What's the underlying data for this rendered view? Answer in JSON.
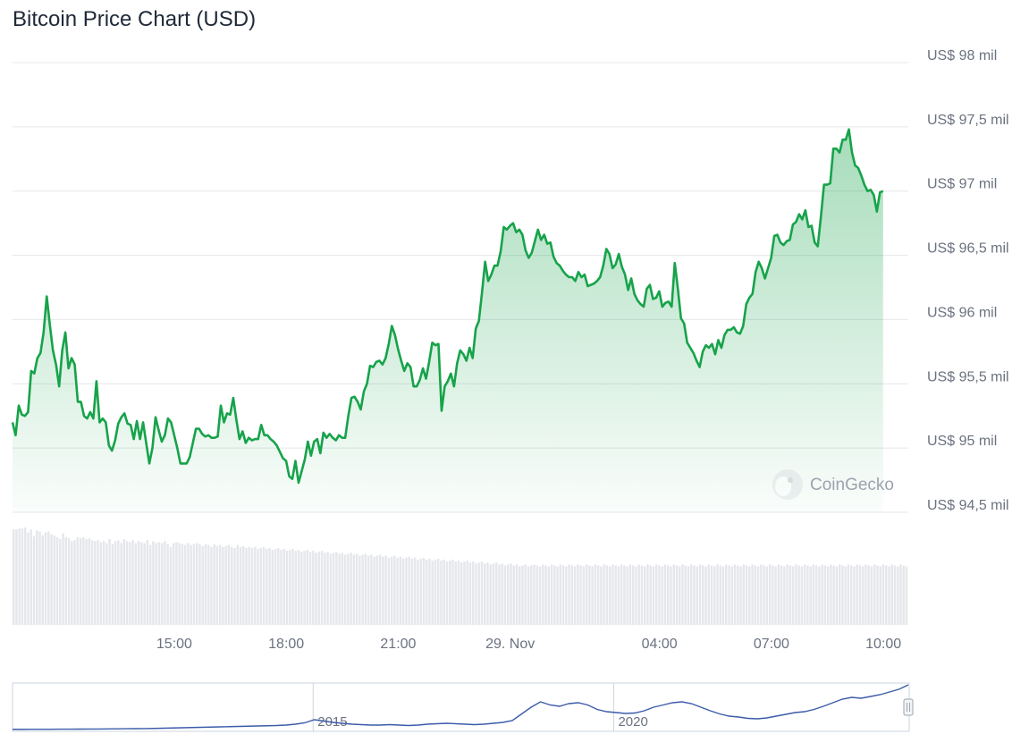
{
  "page": {
    "title": "Bitcoin Price Chart (USD)"
  },
  "watermark": {
    "text": "CoinGecko"
  },
  "colors": {
    "line": "#16a34a",
    "navigator_line": "#3b5ba9",
    "volume": "#e5e7eb",
    "grid": "#e5e7eb",
    "area": "#16a34a"
  },
  "chart_data": {
    "type": "line",
    "title": "Bitcoin Price Chart (USD)",
    "y_unit": "USD",
    "ylim": [
      94500,
      98000
    ],
    "y_ticks": [
      98000,
      97500,
      97000,
      96500,
      96000,
      95500,
      95000,
      94500
    ],
    "y_tick_labels": [
      "US$ 98 mil",
      "US$ 97,5 mil",
      "US$ 97 mil",
      "US$ 96,5 mil",
      "US$ 96 mil",
      "US$ 95,5 mil",
      "US$ 95 mil",
      "US$ 94,5 mil"
    ],
    "x_hours_range": [
      10.6667,
      34.6667
    ],
    "x_ticks": [
      {
        "label": "15:00",
        "hour": 15
      },
      {
        "label": "18:00",
        "hour": 18
      },
      {
        "label": "21:00",
        "hour": 21
      },
      {
        "label": "29. Nov",
        "hour": 24
      },
      {
        "label": "04:00",
        "hour": 28
      },
      {
        "label": "07:00",
        "hour": 31
      },
      {
        "label": "10:00",
        "hour": 34
      }
    ],
    "grid": true,
    "legend": "none",
    "series": [
      {
        "x_hours_step": 0.0833,
        "values": [
          95200,
          95100,
          95330,
          95260,
          95250,
          95280,
          95600,
          95580,
          95700,
          95740,
          95900,
          96180,
          95960,
          95760,
          95650,
          95480,
          95760,
          95900,
          95620,
          95700,
          95650,
          95360,
          95360,
          95250,
          95230,
          95280,
          95230,
          95520,
          95200,
          95230,
          95200,
          95020,
          94980,
          95060,
          95190,
          95240,
          95270,
          95190,
          95180,
          95070,
          95210,
          95070,
          95200,
          95040,
          94880,
          95000,
          95240,
          95140,
          95050,
          95100,
          95230,
          95200,
          95100,
          95000,
          94880,
          94880,
          94880,
          94930,
          95040,
          95150,
          95150,
          95110,
          95090,
          95100,
          95080,
          95080,
          95090,
          95330,
          95200,
          95270,
          95260,
          95390,
          95220,
          95070,
          95130,
          95040,
          95080,
          95060,
          95070,
          95070,
          95180,
          95100,
          95100,
          95070,
          95050,
          95020,
          94970,
          94920,
          94900,
          94780,
          94760,
          94900,
          94730,
          94820,
          94910,
          95050,
          94940,
          95050,
          95070,
          94960,
          95120,
          95080,
          95110,
          95080,
          95060,
          95100,
          95080,
          95080,
          95250,
          95390,
          95400,
          95360,
          95300,
          95440,
          95500,
          95640,
          95630,
          95670,
          95680,
          95650,
          95700,
          95810,
          95950,
          95880,
          95770,
          95680,
          95600,
          95660,
          95630,
          95480,
          95480,
          95530,
          95620,
          95540,
          95670,
          95820,
          95800,
          95810,
          95290,
          95480,
          95520,
          95580,
          95480,
          95660,
          95760,
          95730,
          95680,
          95780,
          95700,
          95930,
          95990,
          96210,
          96450,
          96300,
          96350,
          96420,
          96420,
          96530,
          96720,
          96700,
          96730,
          96750,
          96680,
          96700,
          96660,
          96540,
          96480,
          96520,
          96610,
          96700,
          96620,
          96660,
          96590,
          96600,
          96490,
          96440,
          96420,
          96380,
          96350,
          96330,
          96330,
          96300,
          96370,
          96330,
          96350,
          96260,
          96270,
          96280,
          96300,
          96330,
          96420,
          96550,
          96510,
          96400,
          96430,
          96510,
          96410,
          96350,
          96230,
          96320,
          96200,
          96150,
          96120,
          96100,
          96240,
          96270,
          96160,
          96170,
          96220,
          96100,
          96130,
          96140,
          96100,
          96440,
          96240,
          96010,
          95970,
          95820,
          95780,
          95740,
          95680,
          95630,
          95750,
          95800,
          95780,
          95810,
          95730,
          95840,
          95780,
          95880,
          95920,
          95920,
          95940,
          95900,
          95890,
          95950,
          96120,
          96170,
          96200,
          96370,
          96450,
          96400,
          96320,
          96400,
          96480,
          96650,
          96660,
          96600,
          96580,
          96610,
          96620,
          96740,
          96760,
          96820,
          96780,
          96850,
          96720,
          96730,
          96600,
          96570,
          96800,
          97050,
          97050,
          97060,
          97330,
          97330,
          97300,
          97400,
          97400,
          97480,
          97300,
          97200,
          97180,
          97120,
          97050,
          97000,
          97010,
          96970,
          96840,
          96990,
          97000
        ]
      }
    ],
    "volume": {
      "note": "relative bar heights, unlabeled",
      "values": [
        0.98,
        0.98,
        0.99,
        0.99,
        1.0,
        0.95,
        0.98,
        0.91,
        0.97,
        0.96,
        0.92,
        0.95,
        0.96,
        0.93,
        0.92,
        0.9,
        0.88,
        0.94,
        0.9,
        0.89,
        0.86,
        0.87,
        0.9,
        0.89,
        0.9,
        0.88,
        0.89,
        0.87,
        0.86,
        0.87,
        0.85,
        0.86,
        0.84,
        0.88,
        0.83,
        0.86,
        0.87,
        0.84,
        0.88,
        0.86,
        0.85,
        0.87,
        0.84,
        0.86,
        0.85,
        0.84,
        0.87,
        0.82,
        0.86,
        0.84,
        0.85,
        0.84,
        0.86,
        0.83,
        0.8,
        0.84,
        0.85,
        0.84,
        0.83,
        0.82,
        0.84,
        0.82,
        0.83,
        0.84,
        0.83,
        0.81,
        0.83,
        0.82,
        0.8,
        0.83,
        0.81,
        0.82,
        0.8,
        0.81,
        0.82,
        0.8,
        0.79,
        0.82,
        0.8,
        0.81,
        0.79,
        0.8,
        0.79,
        0.8,
        0.78,
        0.79,
        0.8,
        0.78,
        0.79,
        0.77,
        0.78,
        0.79,
        0.77,
        0.78,
        0.76,
        0.77,
        0.78,
        0.76,
        0.77,
        0.75,
        0.76,
        0.77,
        0.75,
        0.76,
        0.74,
        0.75,
        0.76,
        0.74,
        0.75,
        0.73,
        0.74,
        0.75,
        0.73,
        0.74,
        0.72,
        0.73,
        0.74,
        0.72,
        0.73,
        0.71,
        0.72,
        0.73,
        0.71,
        0.72,
        0.7,
        0.71,
        0.72,
        0.7,
        0.71,
        0.69,
        0.7,
        0.71,
        0.69,
        0.7,
        0.68,
        0.69,
        0.7,
        0.68,
        0.69,
        0.67,
        0.68,
        0.69,
        0.67,
        0.68,
        0.66,
        0.67,
        0.68,
        0.66,
        0.67,
        0.65,
        0.66,
        0.67,
        0.65,
        0.66,
        0.64,
        0.65,
        0.66,
        0.64,
        0.65,
        0.63,
        0.64,
        0.65,
        0.63,
        0.64,
        0.62,
        0.63,
        0.64,
        0.62,
        0.63,
        0.61,
        0.62,
        0.63,
        0.61,
        0.62,
        0.6,
        0.61,
        0.62,
        0.6,
        0.61,
        0.62,
        0.61,
        0.6,
        0.62,
        0.61,
        0.6,
        0.62,
        0.61,
        0.6,
        0.62,
        0.61,
        0.6,
        0.62,
        0.61,
        0.6,
        0.62,
        0.61,
        0.6,
        0.62,
        0.61,
        0.6,
        0.62,
        0.61,
        0.6,
        0.62,
        0.61,
        0.6,
        0.62,
        0.61,
        0.6,
        0.62,
        0.61,
        0.6,
        0.62,
        0.61,
        0.6,
        0.62,
        0.61,
        0.6,
        0.62,
        0.61,
        0.6,
        0.62,
        0.61,
        0.6,
        0.62,
        0.61,
        0.6,
        0.62,
        0.61,
        0.6,
        0.62,
        0.61,
        0.6,
        0.62,
        0.61,
        0.6,
        0.62,
        0.61,
        0.6,
        0.62,
        0.61,
        0.6,
        0.62,
        0.61,
        0.6,
        0.62,
        0.61,
        0.6,
        0.62,
        0.61,
        0.6,
        0.62,
        0.61,
        0.6,
        0.62,
        0.61,
        0.6,
        0.62,
        0.61,
        0.6,
        0.62,
        0.61,
        0.6,
        0.62,
        0.61,
        0.6,
        0.62,
        0.61,
        0.6,
        0.62,
        0.61,
        0.6,
        0.62,
        0.61,
        0.6,
        0.62,
        0.61,
        0.6,
        0.62,
        0.61,
        0.6,
        0.62,
        0.61,
        0.6,
        0.62,
        0.61,
        0.6,
        0.62,
        0.61,
        0.6,
        0.62,
        0.61,
        0.6,
        0.62,
        0.61,
        0.6,
        0.62,
        0.61,
        0.6,
        0.62,
        0.61,
        0.6,
        0.62,
        0.61,
        0.6,
        0.62,
        0.61,
        0.6
      ]
    },
    "navigator": {
      "x_year_range": [
        2010,
        2024.9
      ],
      "x_ticks": [
        {
          "label": "2015",
          "year": 2015
        },
        {
          "label": "2020",
          "year": 2020
        }
      ],
      "series_values": [
        0.005,
        0.005,
        0.006,
        0.006,
        0.007,
        0.008,
        0.009,
        0.01,
        0.011,
        0.012,
        0.014,
        0.016,
        0.018,
        0.02,
        0.022,
        0.025,
        0.03,
        0.035,
        0.04,
        0.045,
        0.05,
        0.055,
        0.06,
        0.065,
        0.07,
        0.075,
        0.08,
        0.085,
        0.09,
        0.1,
        0.12,
        0.15,
        0.22,
        0.19,
        0.16,
        0.14,
        0.12,
        0.11,
        0.1,
        0.1,
        0.11,
        0.1,
        0.09,
        0.1,
        0.12,
        0.13,
        0.14,
        0.13,
        0.12,
        0.11,
        0.12,
        0.14,
        0.16,
        0.2,
        0.35,
        0.5,
        0.62,
        0.55,
        0.52,
        0.58,
        0.6,
        0.55,
        0.45,
        0.4,
        0.38,
        0.36,
        0.37,
        0.42,
        0.5,
        0.55,
        0.6,
        0.62,
        0.58,
        0.5,
        0.42,
        0.35,
        0.3,
        0.28,
        0.25,
        0.24,
        0.26,
        0.3,
        0.34,
        0.38,
        0.4,
        0.45,
        0.52,
        0.6,
        0.68,
        0.72,
        0.7,
        0.74,
        0.78,
        0.84,
        0.9,
        1.0
      ]
    }
  }
}
